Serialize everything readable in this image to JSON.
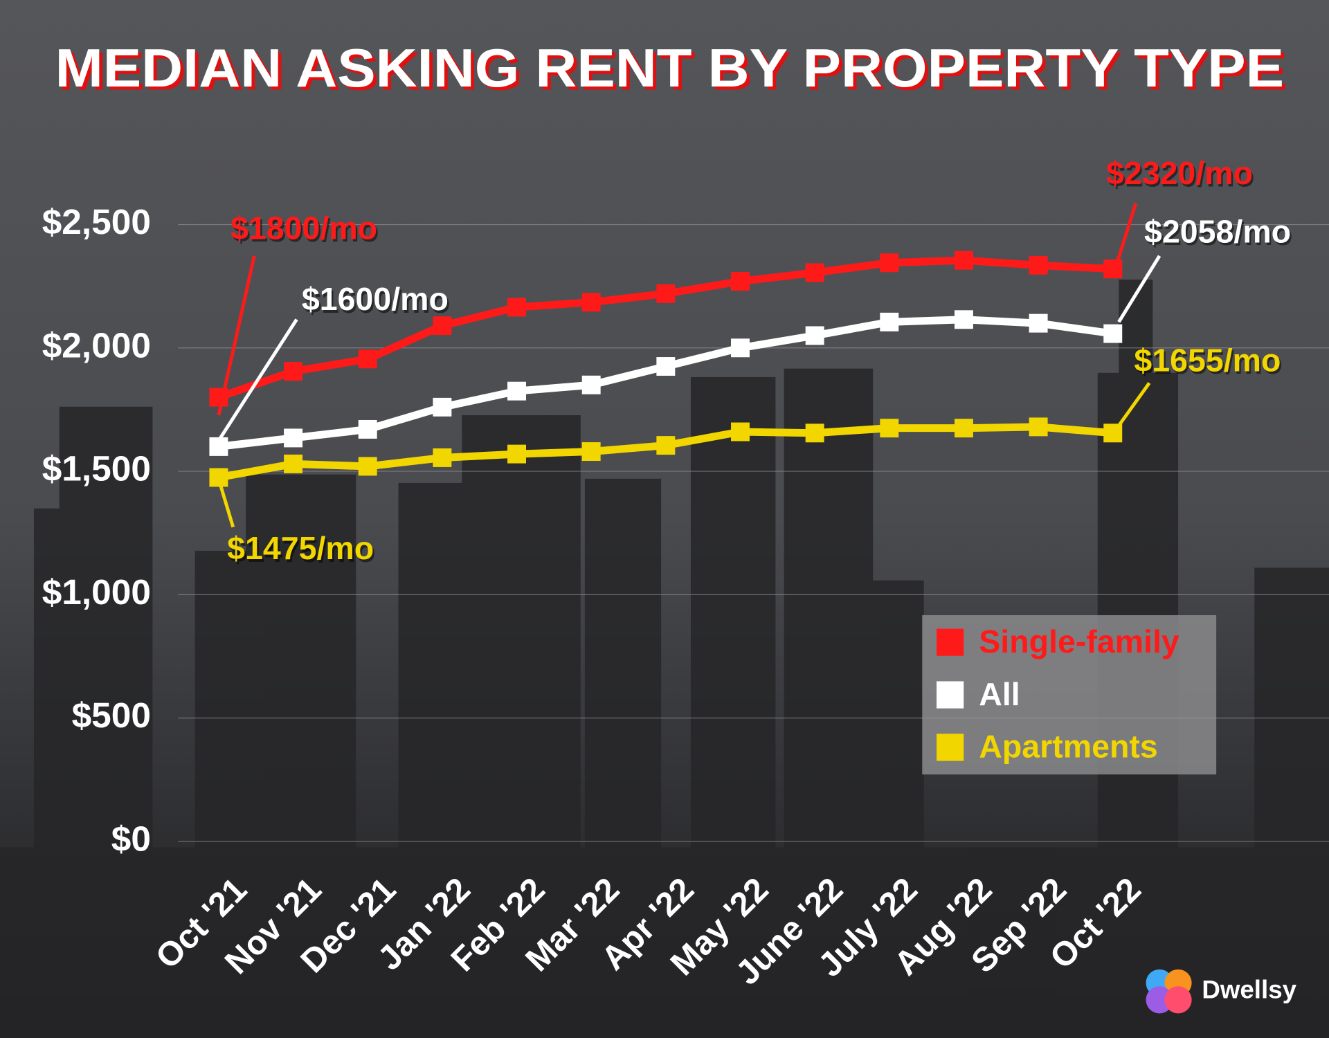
{
  "chart_data": {
    "type": "line",
    "title": "MEDIAN ASKING RENT BY PROPERTY TYPE",
    "brand": "Dwellsy",
    "categories": [
      "Oct '21",
      "Nov '21",
      "Dec '21",
      "Jan '22",
      "Feb '22",
      "Mar '22",
      "Apr '22",
      "May '22",
      "June '22",
      "July '22",
      "Aug '22",
      "Sep '22",
      "Oct '22"
    ],
    "ylim": [
      0,
      2500
    ],
    "yticks": [
      {
        "value": 0,
        "label": "$0"
      },
      {
        "value": 500,
        "label": "$500"
      },
      {
        "value": 1000,
        "label": "$1,000"
      },
      {
        "value": 1500,
        "label": "$1,500"
      },
      {
        "value": 2000,
        "label": "$2,000"
      },
      {
        "value": 2500,
        "label": "$2,500"
      }
    ],
    "grid": true,
    "legend": "lower right",
    "series": [
      {
        "name": "Single-family",
        "color": "#ff1a1a",
        "values": [
          1800,
          1905,
          1955,
          2090,
          2165,
          2185,
          2220,
          2270,
          2305,
          2345,
          2355,
          2335,
          2320
        ],
        "value_labels": [
          "$1800/mo",
          null,
          null,
          null,
          null,
          null,
          null,
          null,
          null,
          null,
          null,
          null,
          "$2320/mo"
        ]
      },
      {
        "name": "All",
        "color": "#ffffff",
        "values": [
          1600,
          1635,
          1670,
          1760,
          1825,
          1850,
          1925,
          2000,
          2050,
          2105,
          2115,
          2100,
          2058
        ],
        "value_labels": [
          "$1600/mo",
          null,
          null,
          null,
          null,
          null,
          null,
          null,
          null,
          null,
          null,
          null,
          "$2058/mo"
        ]
      },
      {
        "name": "Apartments",
        "color": "#f2d600",
        "values": [
          1475,
          1530,
          1520,
          1555,
          1570,
          1580,
          1605,
          1660,
          1655,
          1675,
          1675,
          1680,
          1655
        ],
        "value_labels": [
          "$1475/mo",
          null,
          null,
          null,
          null,
          null,
          null,
          null,
          null,
          null,
          null,
          null,
          "$1655/mo"
        ]
      }
    ]
  }
}
